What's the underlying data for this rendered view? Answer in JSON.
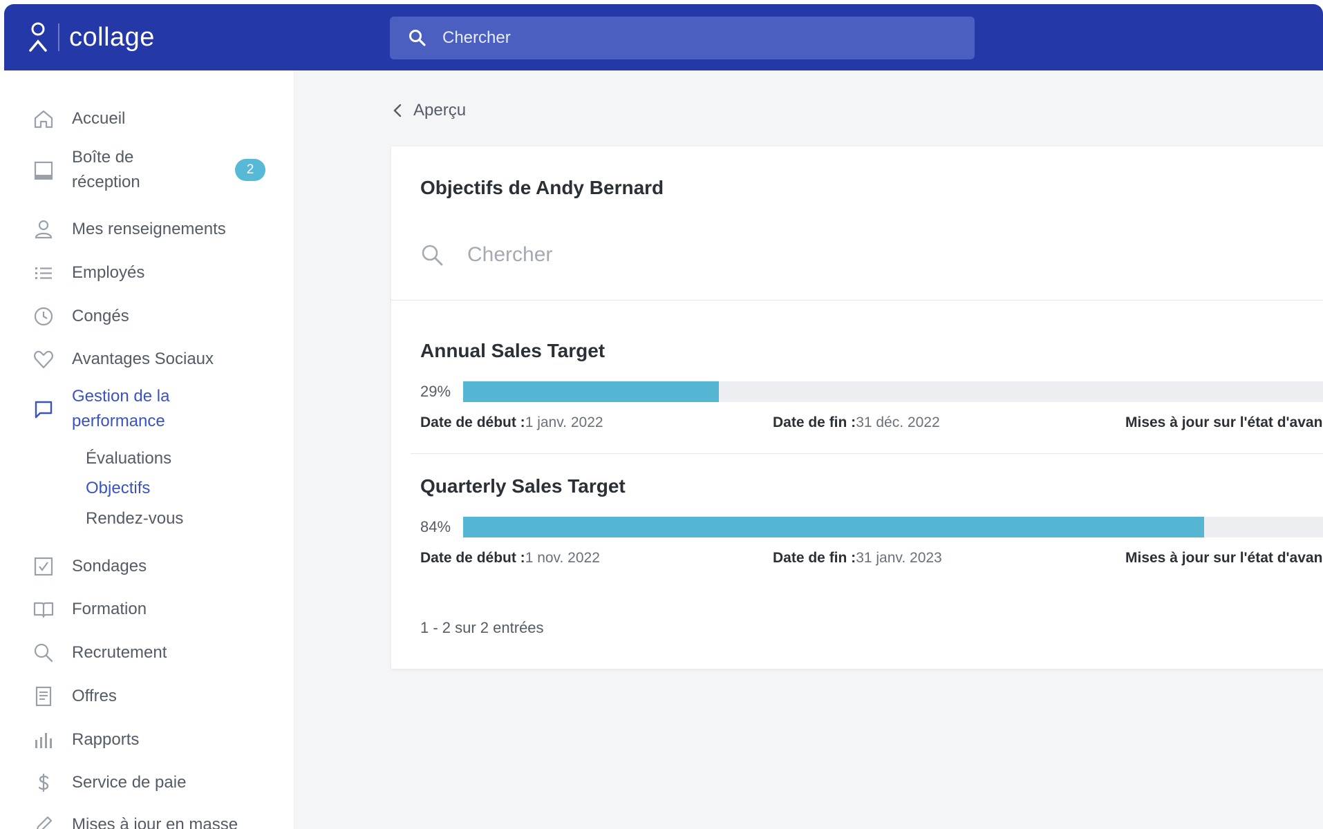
{
  "app": {
    "name": "collage"
  },
  "topbar": {
    "search_placeholder": "Chercher"
  },
  "sidebar": {
    "items": [
      {
        "label": "Accueil",
        "icon": "home-icon"
      },
      {
        "label": "Boîte de réception",
        "line1": "Boîte de",
        "line2": "réception",
        "icon": "inbox-icon",
        "badge": "2"
      },
      {
        "label": "Mes renseignements",
        "icon": "user-icon"
      },
      {
        "label": "Employés",
        "icon": "list-icon"
      },
      {
        "label": "Congés",
        "icon": "clock-icon"
      },
      {
        "label": "Avantages Sociaux",
        "icon": "heart-icon"
      },
      {
        "label": "Gestion de la performance",
        "line1": "Gestion de la",
        "line2": "performance",
        "icon": "chat-icon",
        "active": true
      },
      {
        "label": "Sondages",
        "icon": "checkbox-icon"
      },
      {
        "label": "Formation",
        "icon": "book-icon"
      },
      {
        "label": "Recrutement",
        "icon": "search-icon"
      },
      {
        "label": "Offres",
        "icon": "document-icon"
      },
      {
        "label": "Rapports",
        "icon": "bar-chart-icon"
      },
      {
        "label": "Service de paie",
        "icon": "dollar-icon"
      },
      {
        "label": "Mises à jour en masse",
        "icon": "pencil-icon"
      }
    ],
    "subitems": [
      {
        "label": "Évaluations"
      },
      {
        "label": "Objectifs",
        "active": true
      },
      {
        "label": "Rendez-vous"
      }
    ]
  },
  "main": {
    "back_label": "Aperçu",
    "card_title": "Objectifs de Andy Bernard",
    "search_placeholder": "Chercher",
    "goals": [
      {
        "title": "Annual Sales Target",
        "percent_label": "29%",
        "progress": 0.29,
        "start_label": "Date de début :",
        "start_value": "1 janv. 2022",
        "end_label": "Date de fin :",
        "end_value": "31 déc. 2022",
        "updates_label": "Mises à jour sur l'état d'avan"
      },
      {
        "title": "Quarterly Sales Target",
        "percent_label": "84%",
        "progress": 0.84,
        "start_label": "Date de début :",
        "start_value": "1 nov. 2022",
        "end_label": "Date de fin :",
        "end_value": "31 janv. 2023",
        "updates_label": "Mises à jour sur l'état d'avan"
      }
    ],
    "entries_label": "1 - 2 sur 2 entrées"
  },
  "colors": {
    "topbar": "#2438a8",
    "accent": "#3b52c4",
    "progress": "#54b6d3",
    "badge": "#56b9d6"
  }
}
